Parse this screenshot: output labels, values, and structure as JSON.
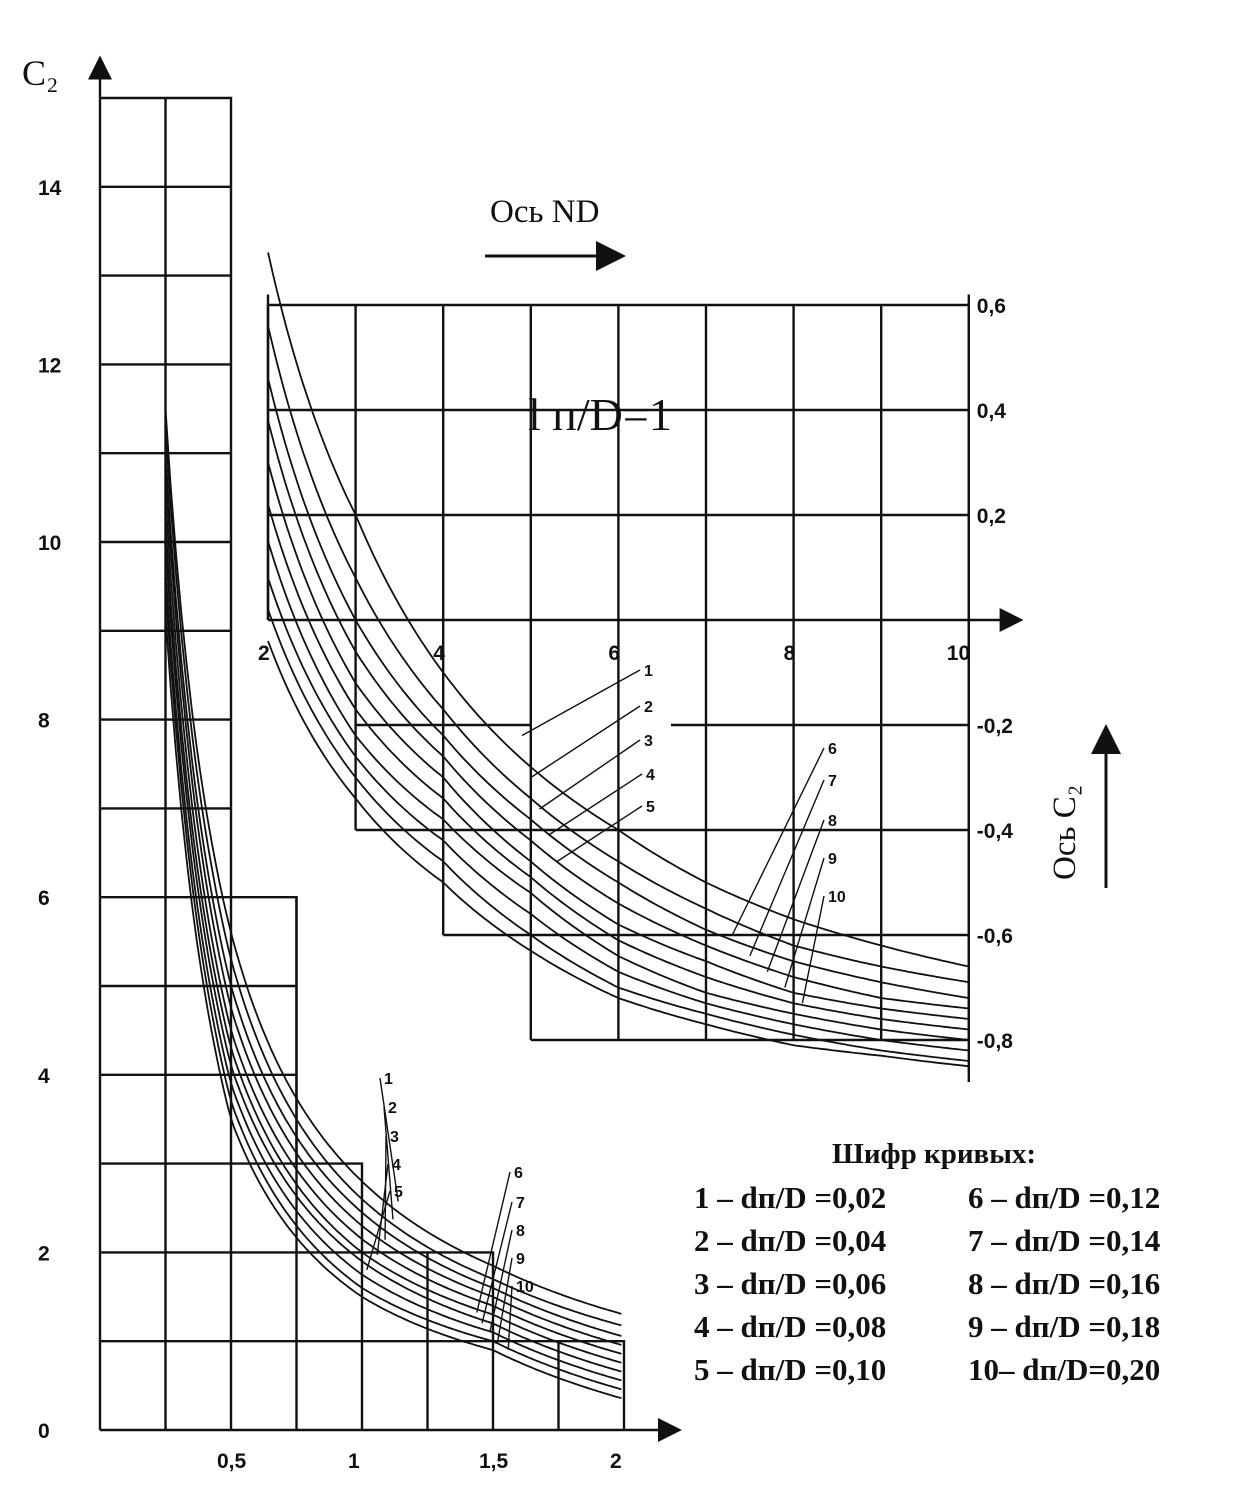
{
  "chart_data": [
    {
      "type": "line",
      "ylabel": "C₂",
      "x_ticks": [
        "0,5",
        "1",
        "1,5",
        "2"
      ],
      "y_ticks": [
        "0",
        "2",
        "4",
        "6",
        "8",
        "10",
        "12",
        "14"
      ],
      "xlim": [
        0,
        2.05
      ],
      "ylim": [
        0,
        15
      ],
      "grid": true,
      "series": [
        {
          "name": "1",
          "x": [
            0.25,
            0.5,
            1.0,
            1.5,
            2.0
          ],
          "y": [
            11.5,
            5.6,
            2.8,
            1.85,
            1.3
          ]
        },
        {
          "name": "2",
          "x": [
            0.25,
            0.5,
            1.0,
            1.5,
            2.0
          ],
          "y": [
            11.3,
            5.3,
            2.6,
            1.7,
            1.17
          ]
        },
        {
          "name": "3",
          "x": [
            0.25,
            0.5,
            1.0,
            1.5,
            2.0
          ],
          "y": [
            11.0,
            5.0,
            2.45,
            1.6,
            1.05
          ]
        },
        {
          "name": "4",
          "x": [
            0.25,
            0.5,
            1.0,
            1.5,
            2.0
          ],
          "y": [
            10.8,
            4.75,
            2.3,
            1.5,
            0.95
          ]
        },
        {
          "name": "5",
          "x": [
            0.25,
            0.5,
            1.0,
            1.5,
            2.0
          ],
          "y": [
            10.5,
            4.5,
            2.15,
            1.4,
            0.85
          ]
        },
        {
          "name": "6",
          "x": [
            0.25,
            0.5,
            1.0,
            1.5,
            2.0
          ],
          "y": [
            10.2,
            4.3,
            2.0,
            1.3,
            0.75
          ]
        },
        {
          "name": "7",
          "x": [
            0.25,
            0.5,
            1.0,
            1.5,
            2.0
          ],
          "y": [
            10.0,
            4.1,
            1.9,
            1.2,
            0.65
          ]
        },
        {
          "name": "8",
          "x": [
            0.25,
            0.5,
            1.0,
            1.5,
            2.0
          ],
          "y": [
            9.7,
            3.9,
            1.75,
            1.1,
            0.55
          ]
        },
        {
          "name": "9",
          "x": [
            0.25,
            0.5,
            1.0,
            1.5,
            2.0
          ],
          "y": [
            9.5,
            3.7,
            1.6,
            1.0,
            0.45
          ]
        },
        {
          "name": "10",
          "x": [
            0.25,
            0.5,
            1.0,
            1.5,
            2.0
          ],
          "y": [
            9.2,
            3.5,
            1.5,
            0.9,
            0.35
          ]
        }
      ]
    },
    {
      "type": "line",
      "title": "l п/D=1",
      "xlabel": "Ось ND",
      "ylabel": "Ось C₂",
      "x_ticks": [
        "2",
        "4",
        "6",
        "8",
        "10"
      ],
      "y_ticks": [
        "0,6",
        "0,4",
        "0,2",
        "-0,2",
        "-0,4",
        "-0,6",
        "-0,8"
      ],
      "xlim": [
        2,
        10
      ],
      "ylim": [
        -0.88,
        0.6
      ],
      "grid": true,
      "series": [
        {
          "name": "1",
          "x": [
            2,
            3,
            4,
            5,
            6,
            7,
            8,
            9,
            10
          ],
          "y": [
            0.7,
            0.2,
            -0.1,
            -0.28,
            -0.4,
            -0.5,
            -0.57,
            -0.62,
            -0.66
          ]
        },
        {
          "name": "2",
          "x": [
            2,
            3,
            4,
            5,
            6,
            7,
            8,
            9,
            10
          ],
          "y": [
            0.56,
            0.08,
            -0.17,
            -0.34,
            -0.46,
            -0.55,
            -0.62,
            -0.66,
            -0.69
          ]
        },
        {
          "name": "3",
          "x": [
            2,
            3,
            4,
            5,
            6,
            7,
            8,
            9,
            10
          ],
          "y": [
            0.46,
            0.0,
            -0.22,
            -0.38,
            -0.5,
            -0.59,
            -0.65,
            -0.69,
            -0.72
          ]
        },
        {
          "name": "4",
          "x": [
            2,
            3,
            4,
            5,
            6,
            7,
            8,
            9,
            10
          ],
          "y": [
            0.38,
            -0.06,
            -0.26,
            -0.42,
            -0.54,
            -0.62,
            -0.68,
            -0.72,
            -0.74
          ]
        },
        {
          "name": "5",
          "x": [
            2,
            3,
            4,
            5,
            6,
            7,
            8,
            9,
            10
          ],
          "y": [
            0.3,
            -0.12,
            -0.3,
            -0.46,
            -0.58,
            -0.65,
            -0.71,
            -0.74,
            -0.76
          ]
        },
        {
          "name": "6",
          "x": [
            2,
            3,
            4,
            5,
            6,
            7,
            8,
            9,
            10
          ],
          "y": [
            0.22,
            -0.17,
            -0.34,
            -0.49,
            -0.61,
            -0.68,
            -0.73,
            -0.76,
            -0.78
          ]
        },
        {
          "name": "7",
          "x": [
            2,
            3,
            4,
            5,
            6,
            7,
            8,
            9,
            10
          ],
          "y": [
            0.15,
            -0.22,
            -0.38,
            -0.52,
            -0.64,
            -0.71,
            -0.75,
            -0.78,
            -0.8
          ]
        },
        {
          "name": "8",
          "x": [
            2,
            3,
            4,
            5,
            6,
            7,
            8,
            9,
            10
          ],
          "y": [
            0.08,
            -0.26,
            -0.42,
            -0.56,
            -0.67,
            -0.73,
            -0.77,
            -0.8,
            -0.82
          ]
        },
        {
          "name": "9",
          "x": [
            2,
            3,
            4,
            5,
            6,
            7,
            8,
            9,
            10
          ],
          "y": [
            0.02,
            -0.3,
            -0.46,
            -0.6,
            -0.7,
            -0.75,
            -0.79,
            -0.82,
            -0.84
          ]
        },
        {
          "name": "10",
          "x": [
            2,
            3,
            4,
            5,
            6,
            7,
            8,
            9,
            10
          ],
          "y": [
            -0.04,
            -0.34,
            -0.5,
            -0.63,
            -0.72,
            -0.77,
            -0.81,
            -0.83,
            -0.85
          ]
        }
      ]
    }
  ],
  "legend": {
    "title": "Шифр кривых:",
    "items": [
      "1 – dп/D =0,02",
      "2 – dп/D =0,04",
      "3 – dп/D =0,06",
      "4 – dп/D =0,08",
      "5 – dп/D =0,10",
      "6 – dп/D =0,12",
      "7 – dп/D =0,14",
      "8 – dп/D =0,16",
      "9 – dп/D =0,18",
      "10– dп/D=0,20"
    ]
  }
}
